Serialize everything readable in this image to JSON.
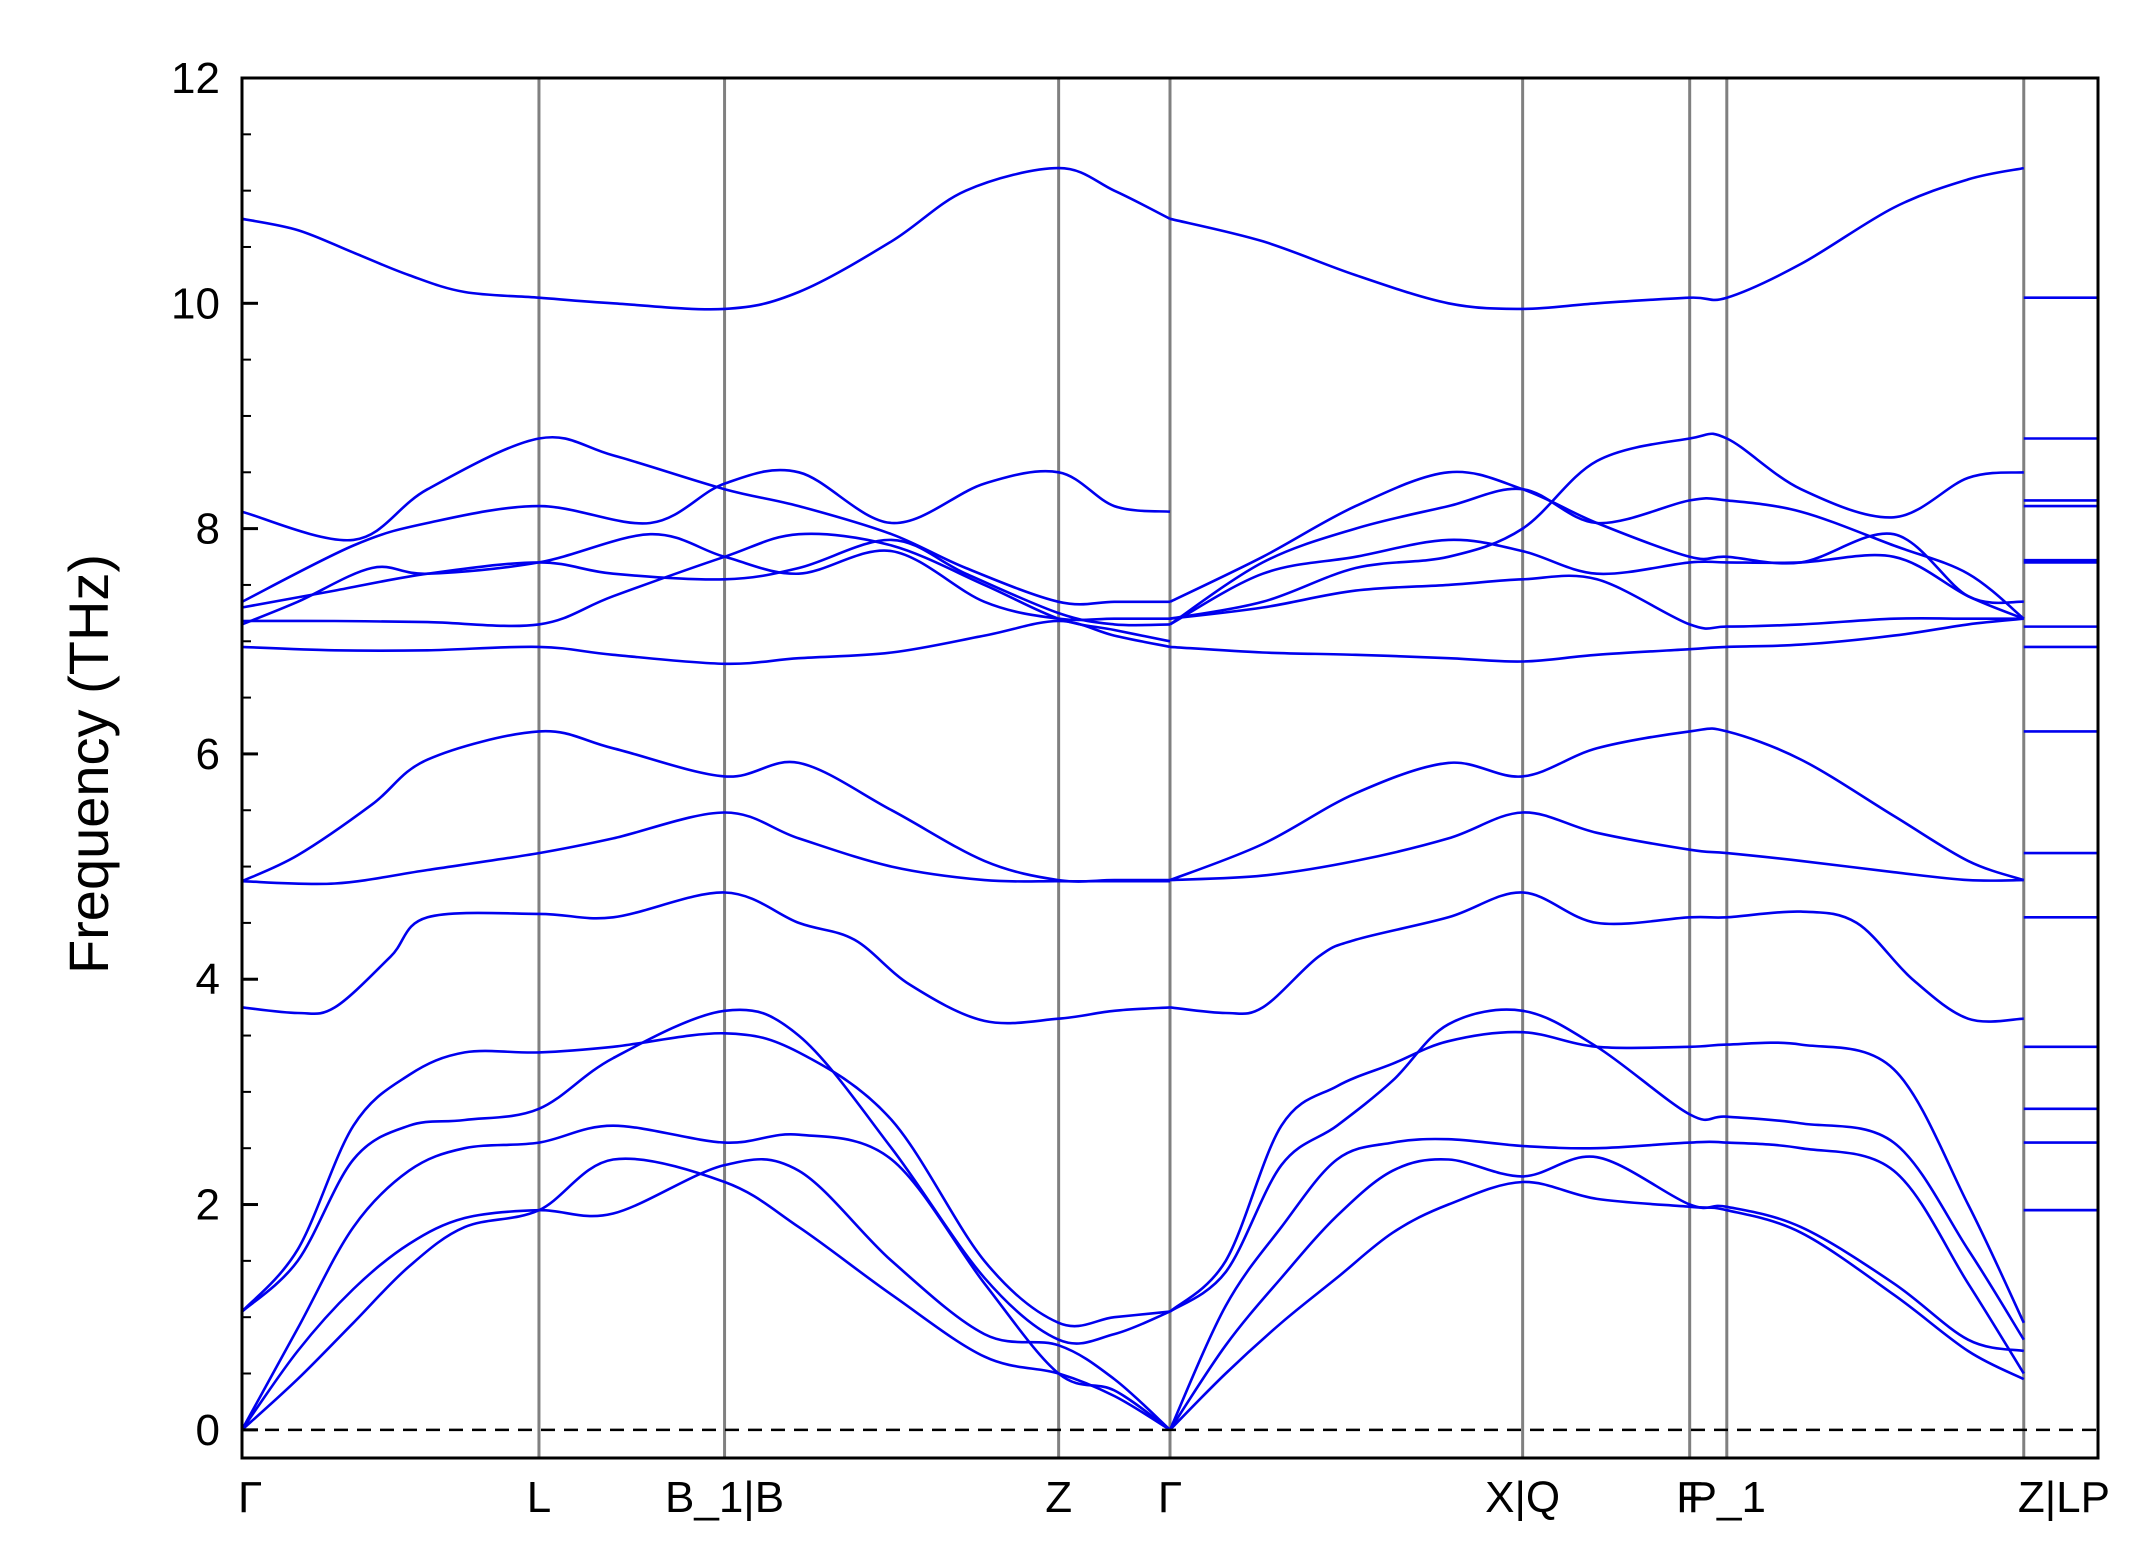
{
  "chart_data": {
    "type": "line",
    "title": "",
    "xlabel": "",
    "ylabel": "Frequency (THz)",
    "ylim": [
      -0.25,
      12
    ],
    "y_ticks": [
      0,
      2,
      4,
      6,
      8,
      10,
      12
    ],
    "y_tick_labels": [
      "0",
      "2",
      "4",
      "6",
      "8",
      "10",
      "12"
    ],
    "grid": false,
    "zero_line_dashed": true,
    "x_domain": [
      0,
      10
    ],
    "high_symmetry_points": [
      {
        "label": "Γ",
        "x": 0.0
      },
      {
        "label": "L",
        "x": 1.6
      },
      {
        "label": "B_1|B",
        "x": 2.6
      },
      {
        "label": "Z",
        "x": 4.4
      },
      {
        "label": "Γ",
        "x": 5.0
      },
      {
        "label": "X|Q",
        "x": 6.9
      },
      {
        "label": "F",
        "x": 7.8
      },
      {
        "label": "P_1",
        "x": 8.0
      },
      {
        "label": "Z|LP",
        "x": 9.6
      }
    ],
    "colors": {
      "bands": "#0000ee",
      "symmetry_lines": "#808080",
      "axes": "#000000"
    },
    "segment_gamma_L_B1_Z_Gamma": [
      {
        "x": [
          0,
          0.3,
          0.6,
          0.9,
          1.2,
          1.6,
          2.0,
          2.6,
          3.0,
          3.5,
          3.9,
          4.4,
          4.7,
          5.0
        ],
        "y": [
          10.75,
          10.65,
          10.45,
          10.25,
          10.1,
          10.05,
          10.0,
          9.95,
          10.1,
          10.55,
          11.0,
          11.2,
          11.0,
          10.75
        ]
      },
      {
        "x": [
          0,
          0.6,
          1.0,
          1.6,
          2.0,
          2.6,
          3.0,
          3.5,
          3.9,
          4.4,
          4.7,
          5.0
        ],
        "y": [
          8.15,
          7.9,
          8.35,
          8.8,
          8.65,
          8.35,
          8.2,
          7.95,
          7.65,
          7.35,
          7.35,
          7.35
        ]
      },
      {
        "x": [
          0,
          0.6,
          1.0,
          1.6,
          2.2,
          2.6,
          3.0,
          3.5,
          4.0,
          4.4,
          4.7,
          5.0
        ],
        "y": [
          7.35,
          7.85,
          8.05,
          8.2,
          8.05,
          8.4,
          8.5,
          8.05,
          8.4,
          8.5,
          8.2,
          8.15
        ]
      },
      {
        "x": [
          0,
          0.3,
          0.7,
          1.0,
          1.6,
          2.2,
          2.6,
          3.0,
          3.5,
          4.0,
          4.4,
          4.7,
          5.0
        ],
        "y": [
          7.15,
          7.35,
          7.65,
          7.6,
          7.7,
          7.95,
          7.75,
          7.6,
          7.8,
          7.35,
          7.2,
          7.2,
          7.2
        ]
      },
      {
        "x": [
          0,
          0.5,
          1.0,
          1.6,
          2.0,
          2.6,
          3.0,
          3.5,
          3.9,
          4.4,
          4.7,
          5.0
        ],
        "y": [
          7.3,
          7.45,
          7.6,
          7.7,
          7.6,
          7.55,
          7.65,
          7.9,
          7.6,
          7.25,
          7.15,
          7.15
        ]
      },
      {
        "x": [
          0,
          0.5,
          1.0,
          1.6,
          2.0,
          2.6,
          3.0,
          3.5,
          4.0,
          4.4,
          4.7,
          5.0
        ],
        "y": [
          7.18,
          7.18,
          7.17,
          7.15,
          7.4,
          7.75,
          7.95,
          7.85,
          7.5,
          7.2,
          7.1,
          7.0
        ]
      },
      {
        "x": [
          0,
          0.5,
          1.0,
          1.6,
          2.0,
          2.6,
          3.0,
          3.5,
          4.0,
          4.4,
          4.7,
          5.0
        ],
        "y": [
          6.95,
          6.92,
          6.92,
          6.95,
          6.88,
          6.8,
          6.85,
          6.9,
          7.05,
          7.18,
          7.05,
          6.95
        ]
      },
      {
        "x": [
          0,
          0.3,
          0.7,
          1.0,
          1.6,
          2.0,
          2.6,
          3.0,
          3.5,
          4.0,
          4.4,
          4.7,
          5.0
        ],
        "y": [
          4.87,
          5.1,
          5.55,
          5.95,
          6.2,
          6.05,
          5.8,
          5.92,
          5.5,
          5.05,
          4.88,
          4.88,
          4.88
        ]
      },
      {
        "x": [
          0,
          0.5,
          1.0,
          1.6,
          2.0,
          2.6,
          3.0,
          3.5,
          4.0,
          4.4,
          4.7,
          5.0
        ],
        "y": [
          4.87,
          4.85,
          4.97,
          5.12,
          5.25,
          5.48,
          5.25,
          5.0,
          4.88,
          4.87,
          4.87,
          4.87
        ]
      },
      {
        "x": [
          0,
          0.3,
          0.5,
          0.8,
          1.0,
          1.6,
          2.0,
          2.6,
          3.0,
          3.3,
          3.6,
          4.0,
          4.4,
          4.7,
          5.0
        ],
        "y": [
          3.75,
          3.7,
          3.75,
          4.2,
          4.55,
          4.58,
          4.55,
          4.77,
          4.5,
          4.35,
          3.95,
          3.63,
          3.65,
          3.72,
          3.75
        ]
      },
      {
        "x": [
          0,
          0.3,
          0.6,
          0.9,
          1.2,
          1.6,
          2.0,
          2.6,
          3.0,
          3.5,
          4.0,
          4.4,
          4.7,
          5.0
        ],
        "y": [
          1.05,
          1.6,
          2.7,
          3.15,
          3.35,
          3.35,
          3.4,
          3.52,
          3.35,
          2.75,
          1.5,
          0.95,
          1.0,
          1.05
        ]
      },
      {
        "x": [
          0,
          0.3,
          0.6,
          0.9,
          1.2,
          1.6,
          2.0,
          2.6,
          3.0,
          3.5,
          4.0,
          4.4,
          4.7,
          5.0
        ],
        "y": [
          1.05,
          1.5,
          2.4,
          2.7,
          2.75,
          2.85,
          3.3,
          3.72,
          3.5,
          2.5,
          1.35,
          0.8,
          0.85,
          1.05
        ]
      },
      {
        "x": [
          0,
          0.3,
          0.6,
          0.9,
          1.2,
          1.6,
          2.0,
          2.6,
          3.0,
          3.5,
          4.0,
          4.4,
          4.7,
          5.0
        ],
        "y": [
          0.0,
          0.9,
          1.8,
          2.3,
          2.5,
          2.55,
          2.7,
          2.55,
          2.62,
          2.4,
          1.3,
          0.5,
          0.35,
          0.0
        ]
      },
      {
        "x": [
          0,
          0.3,
          0.6,
          0.9,
          1.2,
          1.6,
          2.0,
          2.6,
          3.0,
          3.5,
          4.0,
          4.4,
          4.7,
          5.0
        ],
        "y": [
          0.0,
          0.7,
          1.25,
          1.65,
          1.88,
          1.95,
          1.92,
          2.35,
          2.3,
          1.5,
          0.85,
          0.75,
          0.45,
          0.0
        ]
      },
      {
        "x": [
          0,
          0.3,
          0.6,
          0.9,
          1.2,
          1.6,
          2.0,
          2.6,
          3.0,
          3.5,
          4.0,
          4.4,
          4.7,
          5.0
        ],
        "y": [
          0.0,
          0.45,
          0.95,
          1.45,
          1.8,
          1.95,
          2.4,
          2.2,
          1.8,
          1.2,
          0.65,
          0.5,
          0.3,
          0.0
        ]
      }
    ],
    "segment_gamma_XQ_F_P1_Z": [
      {
        "x": [
          5.0,
          5.5,
          6.0,
          6.5,
          6.9,
          7.3,
          7.8,
          8.0,
          8.4,
          8.9,
          9.3,
          9.6
        ],
        "y": [
          10.75,
          10.55,
          10.25,
          10.0,
          9.95,
          10.0,
          10.05,
          10.05,
          10.35,
          10.85,
          11.1,
          11.2
        ]
      },
      {
        "x": [
          5.0,
          5.5,
          6.0,
          6.5,
          6.9,
          7.3,
          7.8,
          8.0,
          8.4,
          8.9,
          9.3,
          9.6
        ],
        "y": [
          7.35,
          7.75,
          8.2,
          8.5,
          8.35,
          8.05,
          7.75,
          7.75,
          7.7,
          7.95,
          7.4,
          7.35
        ]
      },
      {
        "x": [
          5.0,
          5.5,
          6.0,
          6.5,
          6.9,
          7.3,
          7.8,
          8.0,
          8.4,
          8.9,
          9.3,
          9.6
        ],
        "y": [
          7.2,
          7.35,
          7.65,
          7.75,
          8.0,
          8.6,
          8.8,
          8.8,
          8.35,
          8.1,
          8.45,
          8.5
        ]
      },
      {
        "x": [
          5.0,
          5.5,
          6.0,
          6.5,
          6.9,
          7.3,
          7.8,
          8.0,
          8.4,
          8.9,
          9.3,
          9.6
        ],
        "y": [
          7.15,
          7.7,
          8.0,
          8.2,
          8.35,
          8.05,
          8.25,
          8.25,
          8.15,
          7.85,
          7.6,
          7.2
        ]
      },
      {
        "x": [
          5.0,
          5.5,
          6.0,
          6.5,
          6.9,
          7.3,
          7.8,
          8.0,
          8.4,
          8.9,
          9.3,
          9.6
        ],
        "y": [
          7.15,
          7.6,
          7.75,
          7.9,
          7.8,
          7.6,
          7.7,
          7.7,
          7.7,
          7.75,
          7.4,
          7.2
        ]
      },
      {
        "x": [
          5.0,
          5.5,
          6.0,
          6.5,
          6.9,
          7.3,
          7.8,
          8.0,
          8.4,
          8.9,
          9.3,
          9.6
        ],
        "y": [
          7.2,
          7.3,
          7.45,
          7.5,
          7.55,
          7.55,
          7.15,
          7.13,
          7.15,
          7.2,
          7.2,
          7.2
        ]
      },
      {
        "x": [
          5.0,
          5.5,
          6.0,
          6.5,
          6.9,
          7.3,
          7.8,
          8.0,
          8.4,
          8.9,
          9.3,
          9.6
        ],
        "y": [
          6.95,
          6.9,
          6.88,
          6.85,
          6.82,
          6.88,
          6.93,
          6.95,
          6.97,
          7.05,
          7.15,
          7.2
        ]
      },
      {
        "x": [
          5.0,
          5.5,
          6.0,
          6.5,
          6.9,
          7.3,
          7.8,
          8.0,
          8.4,
          8.9,
          9.3,
          9.6
        ],
        "y": [
          4.88,
          5.2,
          5.65,
          5.92,
          5.8,
          6.05,
          6.2,
          6.2,
          5.95,
          5.45,
          5.05,
          4.88
        ]
      },
      {
        "x": [
          5.0,
          5.5,
          6.0,
          6.5,
          6.9,
          7.3,
          7.8,
          8.0,
          8.4,
          8.9,
          9.3,
          9.6
        ],
        "y": [
          4.88,
          4.92,
          5.05,
          5.25,
          5.48,
          5.3,
          5.15,
          5.12,
          5.05,
          4.95,
          4.88,
          4.88
        ]
      },
      {
        "x": [
          5.0,
          5.3,
          5.5,
          5.8,
          6.0,
          6.5,
          6.9,
          7.3,
          7.8,
          8.0,
          8.4,
          8.7,
          9.0,
          9.3,
          9.6
        ],
        "y": [
          3.75,
          3.7,
          3.75,
          4.2,
          4.35,
          4.55,
          4.77,
          4.5,
          4.55,
          4.55,
          4.6,
          4.5,
          4.0,
          3.65,
          3.65
        ]
      },
      {
        "x": [
          5.0,
          5.3,
          5.6,
          5.9,
          6.2,
          6.5,
          6.9,
          7.3,
          7.8,
          8.0,
          8.4,
          8.9,
          9.3,
          9.6
        ],
        "y": [
          1.05,
          1.5,
          2.7,
          3.05,
          3.25,
          3.45,
          3.53,
          3.4,
          3.4,
          3.42,
          3.42,
          3.2,
          2.0,
          0.95
        ]
      },
      {
        "x": [
          5.0,
          5.3,
          5.6,
          5.9,
          6.2,
          6.5,
          6.9,
          7.3,
          7.8,
          8.0,
          8.4,
          8.9,
          9.3,
          9.6
        ],
        "y": [
          1.05,
          1.4,
          2.35,
          2.7,
          3.1,
          3.6,
          3.72,
          3.4,
          2.8,
          2.78,
          2.72,
          2.55,
          1.6,
          0.8
        ]
      },
      {
        "x": [
          5.0,
          5.3,
          5.6,
          5.9,
          6.2,
          6.5,
          6.9,
          7.3,
          7.8,
          8.0,
          8.4,
          8.9,
          9.3,
          9.6
        ],
        "y": [
          0.0,
          1.1,
          1.8,
          2.4,
          2.55,
          2.58,
          2.52,
          2.5,
          2.55,
          2.55,
          2.5,
          2.3,
          1.3,
          0.5
        ]
      },
      {
        "x": [
          5.0,
          5.3,
          5.6,
          5.9,
          6.2,
          6.5,
          6.9,
          7.3,
          7.8,
          8.0,
          8.4,
          8.9,
          9.3,
          9.6
        ],
        "y": [
          0.0,
          0.75,
          1.35,
          1.9,
          2.3,
          2.4,
          2.25,
          2.42,
          2.0,
          1.98,
          1.8,
          1.3,
          0.8,
          0.7
        ]
      },
      {
        "x": [
          5.0,
          5.3,
          5.6,
          5.9,
          6.2,
          6.5,
          6.9,
          7.3,
          7.8,
          8.0,
          8.4,
          8.9,
          9.3,
          9.6
        ],
        "y": [
          0.0,
          0.5,
          0.95,
          1.35,
          1.75,
          2.0,
          2.2,
          2.05,
          1.98,
          1.95,
          1.75,
          1.2,
          0.7,
          0.45
        ]
      }
    ],
    "segment_LP_flat": {
      "x": [
        9.6,
        10.0
      ],
      "levels": [
        10.05,
        8.8,
        8.25,
        8.2,
        7.7,
        7.72,
        7.13,
        6.95,
        6.2,
        5.12,
        4.55,
        3.4,
        2.85,
        2.55,
        1.95,
        1.95
      ]
    }
  }
}
